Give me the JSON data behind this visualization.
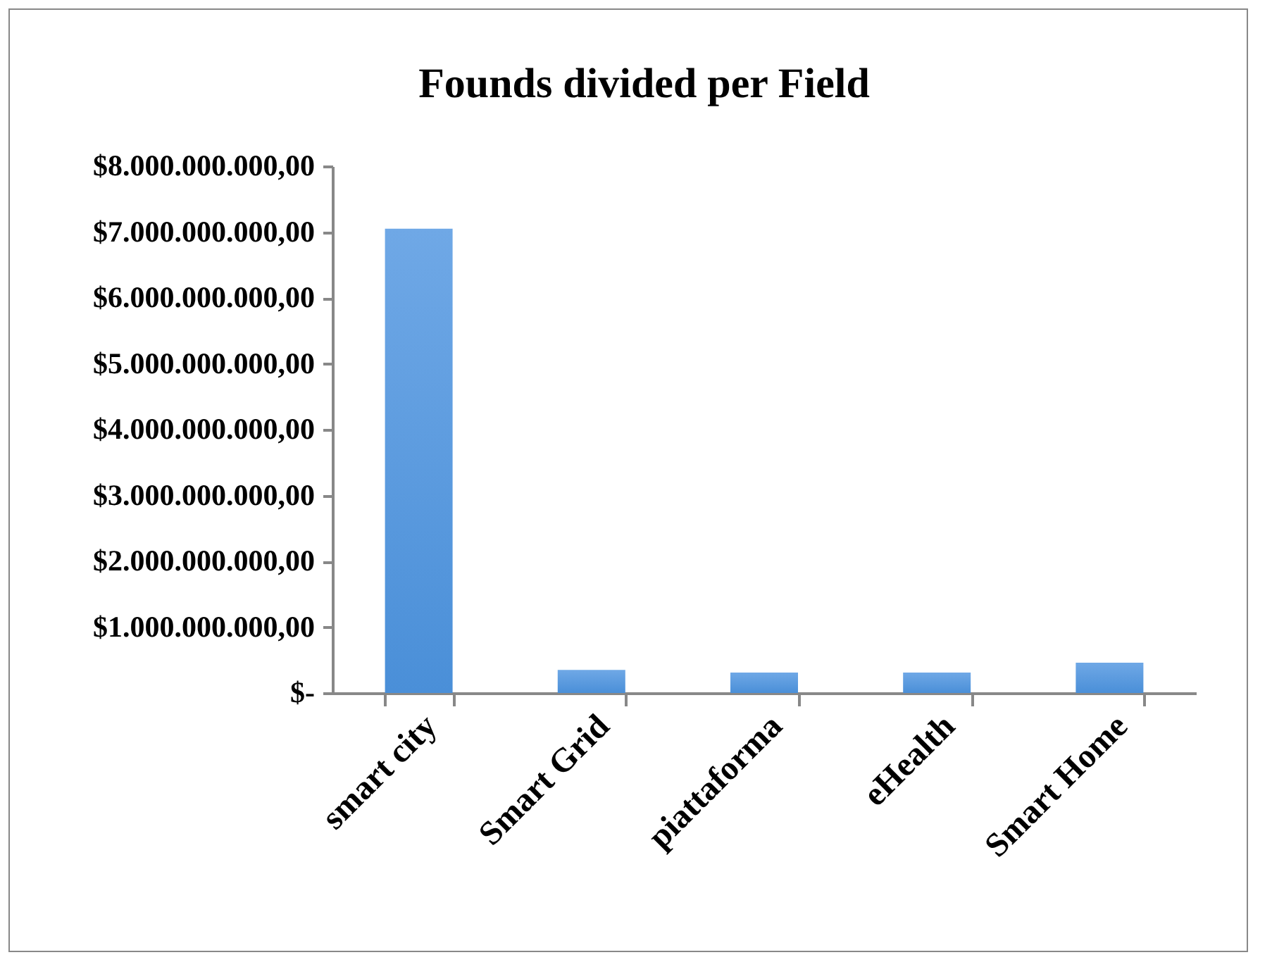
{
  "chart_data": {
    "type": "bar",
    "title": "Founds divided per Field",
    "categories": [
      "smart city",
      "Smart Grid",
      "piattaforma",
      "eHealth",
      "Smart Home"
    ],
    "values": [
      7050000000,
      350000000,
      310000000,
      310000000,
      460000000
    ],
    "color": "#6fa8e6",
    "ylim": [
      0,
      8000000000
    ],
    "yticks": [
      {
        "value": 0,
        "label": "$-"
      },
      {
        "value": 1000000000,
        "label": "$1.000.000.000,00"
      },
      {
        "value": 2000000000,
        "label": "$2.000.000.000,00"
      },
      {
        "value": 3000000000,
        "label": "$3.000.000.000,00"
      },
      {
        "value": 4000000000,
        "label": "$4.000.000.000,00"
      },
      {
        "value": 5000000000,
        "label": "$5.000.000.000,00"
      },
      {
        "value": 6000000000,
        "label": "$6.000.000.000,00"
      },
      {
        "value": 7000000000,
        "label": "$7.000.000.000,00"
      },
      {
        "value": 8000000000,
        "label": "$8.000.000.000,00"
      }
    ],
    "grid": false
  }
}
